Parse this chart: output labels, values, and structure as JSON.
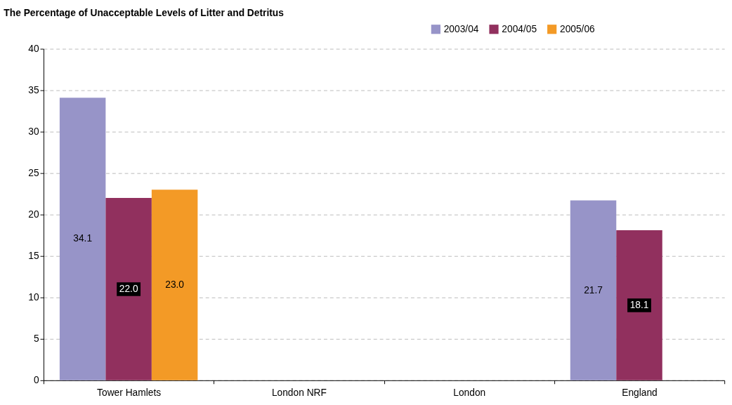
{
  "chart_data": {
    "type": "bar",
    "title": "The Percentage of Unacceptable Levels of Litter and Detritus",
    "categories": [
      "Tower Hamlets",
      "London NRF",
      "London",
      "England"
    ],
    "series": [
      {
        "name": "2003/04",
        "color": "#9794c8",
        "values": [
          34.1,
          null,
          null,
          21.7
        ],
        "value_labels": [
          "34.1",
          null,
          null,
          "21.7"
        ]
      },
      {
        "name": "2004/05",
        "color": "#91305e",
        "values": [
          22.0,
          null,
          null,
          18.1
        ],
        "value_labels": [
          "22.0",
          null,
          null,
          "18.1"
        ]
      },
      {
        "name": "2005/06",
        "color": "#f39a26",
        "values": [
          23.0,
          null,
          null,
          null
        ],
        "value_labels": [
          "23.0",
          null,
          null,
          null
        ]
      }
    ],
    "ylim": [
      0,
      40
    ],
    "yticks": [
      0,
      5,
      10,
      15,
      20,
      25,
      30,
      35,
      40
    ],
    "grid": "y",
    "legend": "top right"
  }
}
